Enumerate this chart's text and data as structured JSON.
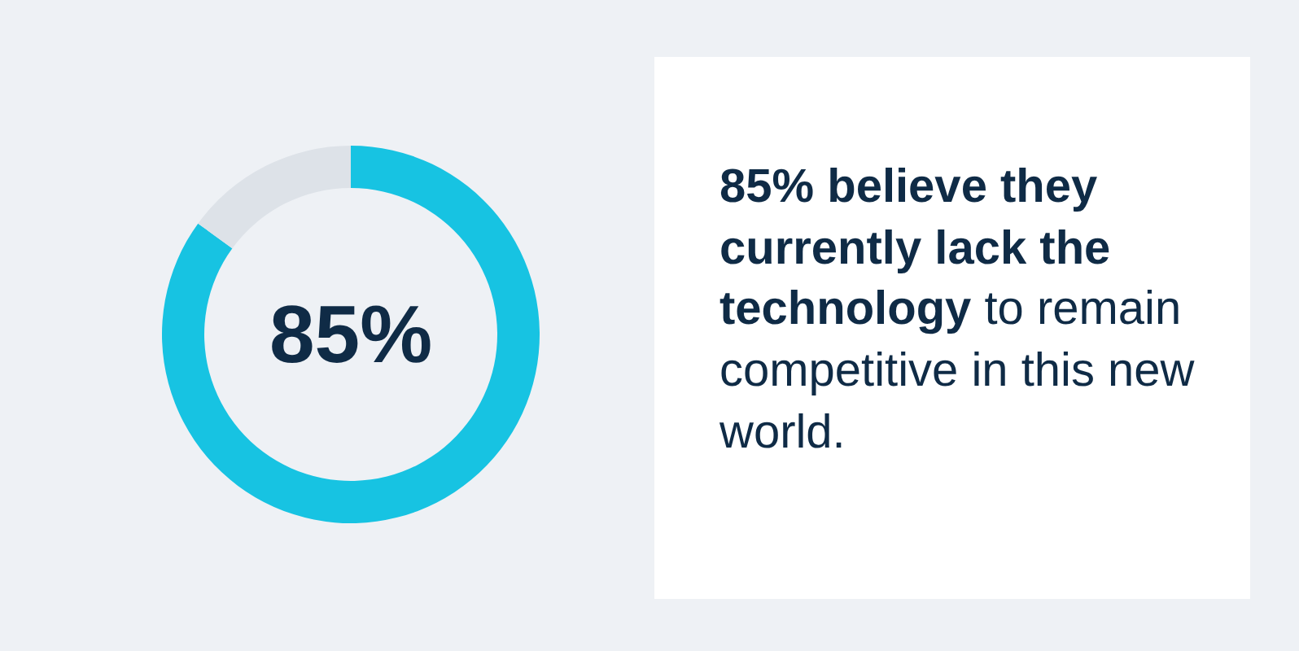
{
  "chart_data": {
    "type": "donut",
    "title": "85% believe they currently lack the technology",
    "subtitle": "to remain competitive in this new world.",
    "categories": [
      null,
      null
    ],
    "values": [
      85,
      15
    ],
    "colors": [
      "#17c3e2",
      "#dde2e8"
    ],
    "value_labels": [
      "85%",
      null
    ],
    "legend": false
  }
}
